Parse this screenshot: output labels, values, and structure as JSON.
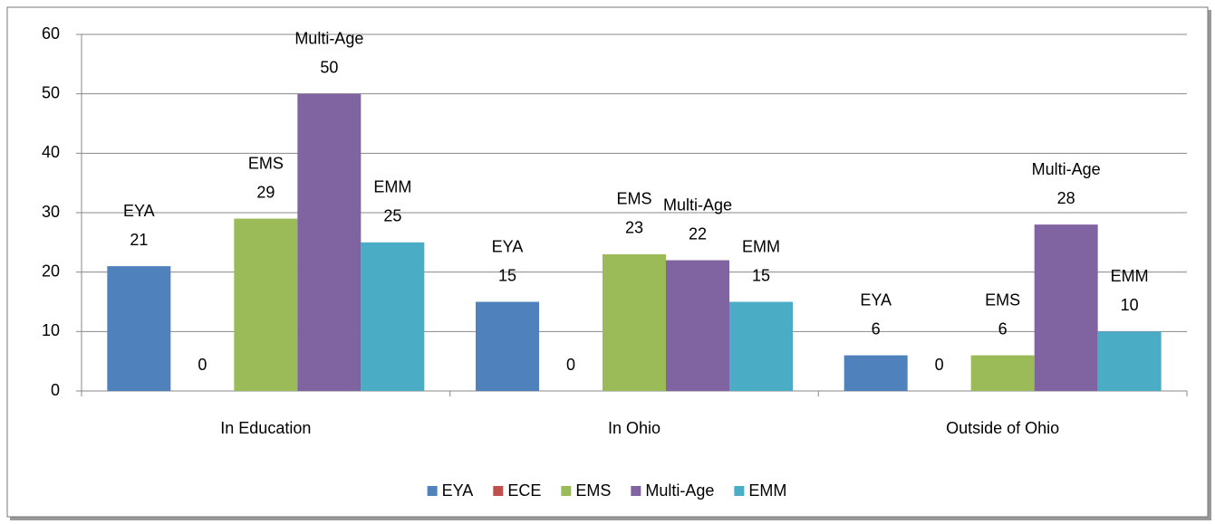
{
  "chart_data": {
    "type": "bar",
    "categories": [
      "In Education",
      "In Ohio",
      "Outside of Ohio"
    ],
    "series": [
      {
        "name": "EYA",
        "color": "#4f81bd",
        "values": [
          21,
          15,
          6
        ]
      },
      {
        "name": "ECE",
        "color": "#c0504d",
        "values": [
          0,
          0,
          0
        ]
      },
      {
        "name": "EMS",
        "color": "#9bbb59",
        "values": [
          29,
          23,
          6
        ]
      },
      {
        "name": "Multi-Age",
        "color": "#8064a2",
        "values": [
          50,
          22,
          28
        ]
      },
      {
        "name": "EMM",
        "color": "#4bacc6",
        "values": [
          25,
          15,
          10
        ]
      }
    ],
    "ylim": [
      0,
      60
    ],
    "yticks": [
      0,
      10,
      20,
      30,
      40,
      50,
      60
    ],
    "grid": true,
    "legend": "bottom"
  }
}
